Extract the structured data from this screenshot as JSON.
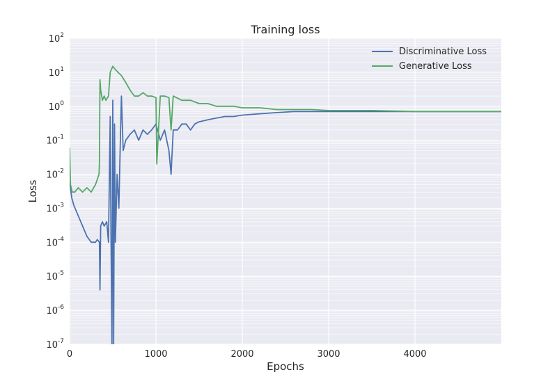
{
  "chart_data": {
    "type": "line",
    "title": "Training loss",
    "xlabel": "Epochs",
    "ylabel": "Loss",
    "xlim": [
      0,
      5000
    ],
    "ylim": [
      1e-07,
      100
    ],
    "yscale": "log",
    "grid": true,
    "legend_position": "top-right",
    "x_ticks": [
      {
        "value": 0,
        "label": "0"
      },
      {
        "value": 1000,
        "label": "1000"
      },
      {
        "value": 2000,
        "label": "2000"
      },
      {
        "value": 3000,
        "label": "3000"
      },
      {
        "value": 4000,
        "label": "4000"
      }
    ],
    "y_ticks": [
      {
        "value": 1e-07,
        "base": "10",
        "exp": "-7"
      },
      {
        "value": 1e-06,
        "base": "10",
        "exp": "-6"
      },
      {
        "value": 1e-05,
        "base": "10",
        "exp": "-5"
      },
      {
        "value": 0.0001,
        "base": "10",
        "exp": "-4"
      },
      {
        "value": 0.001,
        "base": "10",
        "exp": "-3"
      },
      {
        "value": 0.01,
        "base": "10",
        "exp": "-2"
      },
      {
        "value": 0.1,
        "base": "10",
        "exp": "-1"
      },
      {
        "value": 1,
        "base": "10",
        "exp": "0"
      },
      {
        "value": 10,
        "base": "10",
        "exp": "1"
      },
      {
        "value": 100,
        "base": "10",
        "exp": "2"
      }
    ],
    "series": [
      {
        "name": "Discriminative Loss",
        "color": "#4c72b0",
        "points": [
          [
            0,
            0.006
          ],
          [
            25,
            0.002
          ],
          [
            50,
            0.0012
          ],
          [
            100,
            0.0006
          ],
          [
            150,
            0.0003
          ],
          [
            200,
            0.00015
          ],
          [
            250,
            0.0001
          ],
          [
            300,
            0.0001
          ],
          [
            320,
            0.00012
          ],
          [
            345,
            0.0001
          ],
          [
            352,
            4e-06
          ],
          [
            360,
            0.0003
          ],
          [
            380,
            0.0004
          ],
          [
            400,
            0.0003
          ],
          [
            430,
            0.0004
          ],
          [
            450,
            0.0001
          ],
          [
            470,
            0.5
          ],
          [
            480,
            0.0001
          ],
          [
            490,
            1e-07
          ],
          [
            500,
            1.5
          ],
          [
            510,
            1e-07
          ],
          [
            520,
            0.3
          ],
          [
            530,
            0.0001
          ],
          [
            550,
            0.01
          ],
          [
            570,
            0.001
          ],
          [
            590,
            0.2
          ],
          [
            600,
            2
          ],
          [
            620,
            0.05
          ],
          [
            650,
            0.1
          ],
          [
            700,
            0.15
          ],
          [
            750,
            0.2
          ],
          [
            800,
            0.1
          ],
          [
            850,
            0.2
          ],
          [
            900,
            0.15
          ],
          [
            950,
            0.2
          ],
          [
            1000,
            0.3
          ],
          [
            1050,
            0.1
          ],
          [
            1100,
            0.2
          ],
          [
            1150,
            0.05
          ],
          [
            1175,
            0.01
          ],
          [
            1200,
            0.2
          ],
          [
            1250,
            0.2
          ],
          [
            1300,
            0.3
          ],
          [
            1350,
            0.3
          ],
          [
            1400,
            0.2
          ],
          [
            1450,
            0.3
          ],
          [
            1500,
            0.35
          ],
          [
            1600,
            0.4
          ],
          [
            1700,
            0.45
          ],
          [
            1800,
            0.5
          ],
          [
            1900,
            0.5
          ],
          [
            2000,
            0.55
          ],
          [
            2200,
            0.6
          ],
          [
            2400,
            0.65
          ],
          [
            2600,
            0.7
          ],
          [
            3000,
            0.7
          ],
          [
            3500,
            0.7
          ],
          [
            4000,
            0.7
          ],
          [
            4500,
            0.7
          ],
          [
            5000,
            0.7
          ]
        ]
      },
      {
        "name": "Generative Loss",
        "color": "#55a868",
        "points": [
          [
            0,
            0.06
          ],
          [
            10,
            0.005
          ],
          [
            30,
            0.003
          ],
          [
            60,
            0.003
          ],
          [
            100,
            0.004
          ],
          [
            150,
            0.003
          ],
          [
            200,
            0.004
          ],
          [
            250,
            0.003
          ],
          [
            300,
            0.005
          ],
          [
            340,
            0.01
          ],
          [
            345,
            0.02
          ],
          [
            352,
            6
          ],
          [
            360,
            3
          ],
          [
            380,
            1.5
          ],
          [
            400,
            2
          ],
          [
            420,
            1.5
          ],
          [
            450,
            2
          ],
          [
            470,
            10
          ],
          [
            500,
            15
          ],
          [
            530,
            12
          ],
          [
            560,
            10
          ],
          [
            600,
            8
          ],
          [
            650,
            5
          ],
          [
            700,
            3
          ],
          [
            750,
            2
          ],
          [
            800,
            2
          ],
          [
            850,
            2.5
          ],
          [
            900,
            2
          ],
          [
            950,
            2
          ],
          [
            1000,
            1.8
          ],
          [
            1010,
            0.02
          ],
          [
            1050,
            2
          ],
          [
            1100,
            2
          ],
          [
            1150,
            1.8
          ],
          [
            1175,
            0.2
          ],
          [
            1200,
            2
          ],
          [
            1300,
            1.5
          ],
          [
            1400,
            1.5
          ],
          [
            1500,
            1.2
          ],
          [
            1600,
            1.2
          ],
          [
            1700,
            1.0
          ],
          [
            1800,
            1.0
          ],
          [
            1900,
            1.0
          ],
          [
            2000,
            0.9
          ],
          [
            2200,
            0.9
          ],
          [
            2400,
            0.8
          ],
          [
            2600,
            0.8
          ],
          [
            2800,
            0.8
          ],
          [
            3000,
            0.75
          ],
          [
            3500,
            0.75
          ],
          [
            4000,
            0.7
          ],
          [
            4500,
            0.7
          ],
          [
            5000,
            0.7
          ]
        ]
      }
    ]
  }
}
